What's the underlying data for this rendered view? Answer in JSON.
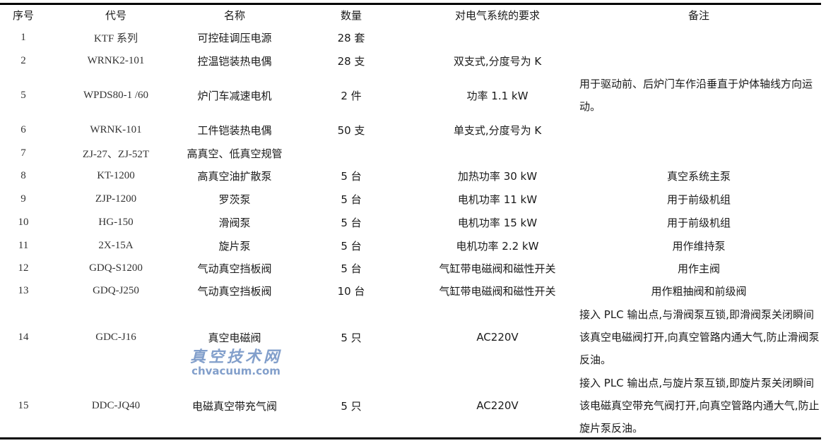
{
  "table": {
    "headers": [
      "序号",
      "代号",
      "名称",
      "数量",
      "对电气系统的要求",
      "备注"
    ],
    "rows": [
      {
        "no": "1",
        "code": "KTF 系列",
        "name": "可控硅调压电源",
        "qty": "28 套",
        "req": "",
        "note": ""
      },
      {
        "no": "2",
        "code": "WRNK2-101",
        "name": "控温铠装热电偶",
        "qty": "28 支",
        "req": "双支式,分度号为 K",
        "note": ""
      },
      {
        "no": "5",
        "code": "WPDS80-1 /60",
        "name": "炉门车减速电机",
        "qty": "2 件",
        "req": "功率 1.1 kW",
        "note": "用于驱动前、后炉门车作沿垂直于炉体轴线方向运动。"
      },
      {
        "no": "6",
        "code": "WRNK-101",
        "name": "工件铠装热电偶",
        "qty": "50 支",
        "req": "单支式,分度号为 K",
        "note": ""
      },
      {
        "no": "7",
        "code": "ZJ-27、ZJ-52T",
        "name": "高真空、低真空规管",
        "qty": "",
        "req": "",
        "note": ""
      },
      {
        "no": "8",
        "code": "KT-1200",
        "name": "高真空油扩散泵",
        "qty": "5 台",
        "req": "加热功率 30 kW",
        "note": "真空系统主泵"
      },
      {
        "no": "9",
        "code": "ZJP-1200",
        "name": "罗茨泵",
        "qty": "5 台",
        "req": "电机功率 11 kW",
        "note": "用于前级机组"
      },
      {
        "no": "10",
        "code": "HG-150",
        "name": "滑阀泵",
        "qty": "5 台",
        "req": "电机功率 15 kW",
        "note": "用于前级机组"
      },
      {
        "no": "11",
        "code": "2X-15A",
        "name": "旋片泵",
        "qty": "5 台",
        "req": "电机功率 2.2 kW",
        "note": "用作维持泵"
      },
      {
        "no": "12",
        "code": "GDQ-S1200",
        "name": "气动真空挡板阀",
        "qty": "5 台",
        "req": "气缸带电磁阀和磁性开关",
        "note": "用作主阀"
      },
      {
        "no": "13",
        "code": "GDQ-J250",
        "name": "气动真空挡板阀",
        "qty": "10 台",
        "req": "气缸带电磁阀和磁性开关",
        "note": "用作粗抽阀和前级阀"
      },
      {
        "no": "14",
        "code": "GDC-J16",
        "name": "真空电磁阀",
        "qty": "5 只",
        "req": "AC220V",
        "note": "接入 PLC 输出点,与滑阀泵互锁,即滑阀泵关闭瞬间该真空电磁阀打开,向真空管路内通大气,防止滑阀泵反油。"
      },
      {
        "no": "15",
        "code": "DDC-JQ40",
        "name": "电磁真空带充气阀",
        "qty": "5 只",
        "req": "AC220V",
        "note": "接入 PLC 输出点,与旋片泵互锁,即旋片泵关闭瞬间该电磁真空带充气阀打开,向真空管路内通大气,防止旋片泵反油。"
      }
    ]
  },
  "watermark": {
    "cn": "真空技术网",
    "en": "chvacuum.com",
    "color": "#6d8fc2"
  }
}
